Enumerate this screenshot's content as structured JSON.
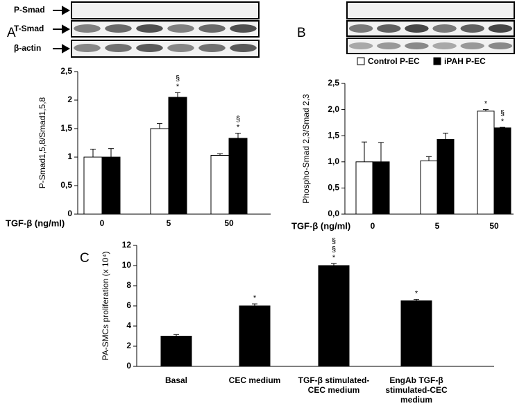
{
  "blot_labels": [
    "P-Smad",
    "T-Smad",
    "β-actin"
  ],
  "chart_data": [
    {
      "type": "bar",
      "panel": "A",
      "ylabel": "P-Smad1,5,8/Smad1,5,8",
      "xlabel": "TGF-β (ng/ml)",
      "categories": [
        "0",
        "5",
        "50"
      ],
      "series": [
        {
          "name": "Control P-EC",
          "color": "#ffffff",
          "values": [
            1.0,
            1.5,
            1.03
          ],
          "errors": [
            0.14,
            0.09,
            0.03
          ],
          "annotations": [
            null,
            null,
            null
          ]
        },
        {
          "name": "iPAH P-EC",
          "color": "#000000",
          "values": [
            1.0,
            2.05,
            1.33
          ],
          "errors": [
            0.15,
            0.08,
            0.09
          ],
          "annotations": [
            null,
            [
              "§",
              "*"
            ],
            [
              "§",
              "*"
            ]
          ]
        }
      ],
      "ylim": [
        0,
        2.5
      ],
      "yticks": [
        0,
        {
          "value": 0.5,
          "label": "0,5"
        },
        1,
        {
          "value": 1.5,
          "label": "1,5"
        },
        2,
        {
          "value": 2.5,
          "label": "2,5"
        }
      ]
    },
    {
      "type": "bar",
      "panel": "B",
      "ylabel": "Phospho-Smad 2,3/Smad 2,3",
      "xlabel": "TGF-β (ng/ml)",
      "categories": [
        "0",
        "5",
        "50"
      ],
      "legend": "top",
      "series": [
        {
          "name": "Control P-EC",
          "color": "#ffffff",
          "values": [
            1.0,
            1.02,
            1.97
          ],
          "errors": [
            0.38,
            0.08,
            0.03
          ],
          "annotations": [
            null,
            null,
            [
              "*"
            ]
          ]
        },
        {
          "name": "iPAH P-EC",
          "color": "#000000",
          "values": [
            1.0,
            1.43,
            1.65
          ],
          "errors": [
            0.37,
            0.12,
            0.01
          ],
          "annotations": [
            null,
            null,
            [
              "§",
              "*"
            ]
          ]
        }
      ],
      "ylim": [
        0,
        2.5
      ],
      "yticks": [
        {
          "value": 0,
          "label": "0,0"
        },
        {
          "value": 0.5,
          "label": "0,5"
        },
        {
          "value": 1,
          "label": "1,0"
        },
        {
          "value": 1.5,
          "label": "1,5"
        },
        {
          "value": 2,
          "label": "2,0"
        },
        {
          "value": 2.5,
          "label": "2,5"
        }
      ]
    },
    {
      "type": "bar",
      "panel": "C",
      "ylabel": "PA-SMCs proliferation (x 10⁴)",
      "categories": [
        "Basal",
        "CEC medium",
        "TGF-β stimulated-CEC medium",
        "EngAb TGF-β stimulated-CEC medium"
      ],
      "color": "#000000",
      "values": [
        3.0,
        6.0,
        10.0,
        6.5
      ],
      "errors": [
        0.15,
        0.2,
        0.2,
        0.15
      ],
      "annotations": [
        null,
        [
          "*"
        ],
        [
          "§",
          "§",
          "*"
        ],
        [
          "*"
        ]
      ],
      "ylim": [
        0,
        12
      ],
      "yticks": [
        0,
        2,
        4,
        6,
        8,
        10,
        12
      ]
    }
  ]
}
